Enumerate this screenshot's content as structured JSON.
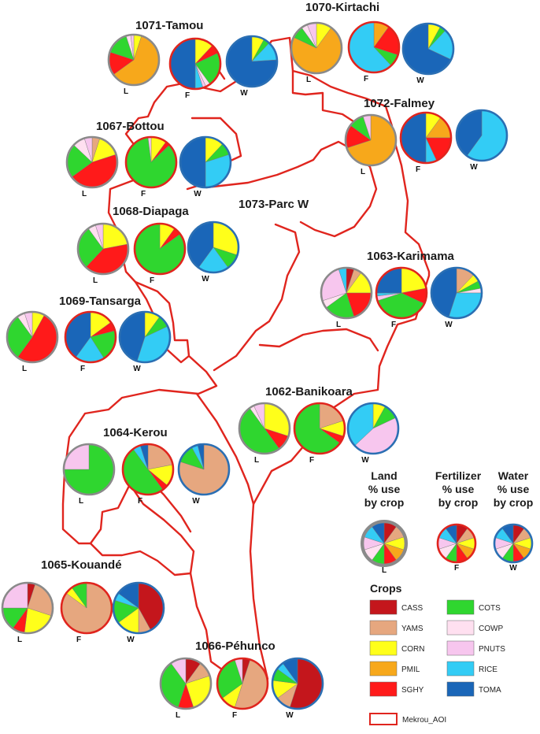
{
  "colors": {
    "boundary": "#e0251e",
    "CASS": "#c4161c",
    "YAMS": "#e6a77f",
    "CORN": "#ffff1a",
    "PMIL": "#f7a81b",
    "SGHY": "#ff1a1a",
    "COTS": "#2fd62f",
    "COWP": "#ffe0f0",
    "PNUTS": "#f7c6ee",
    "RICE": "#33ccf5",
    "TOMA": "#1a66b8"
  },
  "legend": {
    "land_header": [
      "Land",
      "% use",
      "by crop"
    ],
    "fert_header": [
      "Fertilizer",
      "% use",
      "by crop"
    ],
    "water_header": [
      "Water",
      "% use",
      "by crop"
    ],
    "land_letter": "L",
    "fert_letter": "F",
    "water_letter": "W",
    "crops_title": "Crops",
    "crops": [
      "CASS",
      "YAMS",
      "CORN",
      "PMIL",
      "SGHY",
      "COTS",
      "COWP",
      "PNUTS",
      "RICE",
      "TOMA"
    ],
    "boundary_label": "Mekrou_AOI"
  },
  "regions": [
    {
      "id": "1071",
      "name": "1071-Tamou",
      "pies": [
        {
          "letter": "L",
          "values": [
            0,
            0,
            5,
            60,
            15,
            15,
            3,
            2,
            0,
            0
          ]
        },
        {
          "letter": "F",
          "values": [
            0,
            0,
            12,
            0,
            6,
            22,
            3,
            2,
            5,
            50
          ]
        },
        {
          "letter": "W",
          "values": [
            0,
            0,
            8,
            0,
            0,
            4,
            0,
            0,
            12,
            76
          ]
        }
      ]
    },
    {
      "id": "1070",
      "name": "1070-Kirtachi",
      "pies": [
        {
          "letter": "L",
          "values": [
            0,
            0,
            10,
            72,
            0,
            8,
            4,
            6,
            0,
            0
          ]
        },
        {
          "letter": "F",
          "values": [
            0,
            0,
            0,
            10,
            20,
            8,
            0,
            0,
            62,
            0
          ]
        },
        {
          "letter": "W",
          "values": [
            0,
            0,
            8,
            0,
            0,
            4,
            0,
            0,
            20,
            68
          ]
        }
      ]
    },
    {
      "id": "1072",
      "name": "1072-Falmey",
      "pies": [
        {
          "letter": "L",
          "values": [
            0,
            0,
            0,
            70,
            15,
            10,
            0,
            5,
            0,
            0
          ]
        },
        {
          "letter": "F",
          "values": [
            0,
            0,
            10,
            15,
            18,
            0,
            0,
            0,
            7,
            50
          ]
        },
        {
          "letter": "W",
          "values": [
            0,
            0,
            0,
            0,
            0,
            0,
            0,
            0,
            60,
            40
          ]
        }
      ]
    },
    {
      "id": "1067",
      "name": "1067-Bottou",
      "pies": [
        {
          "letter": "L",
          "values": [
            0,
            5,
            15,
            0,
            45,
            22,
            8,
            5,
            0,
            0
          ]
        },
        {
          "letter": "F",
          "values": [
            0,
            0,
            10,
            0,
            3,
            85,
            0,
            2,
            0,
            0
          ]
        },
        {
          "letter": "W",
          "values": [
            0,
            0,
            12,
            0,
            0,
            8,
            0,
            0,
            30,
            50
          ]
        }
      ]
    },
    {
      "id": "1068",
      "name": "1068-Diapaga",
      "pies": [
        {
          "letter": "L",
          "values": [
            0,
            0,
            22,
            0,
            40,
            28,
            5,
            5,
            0,
            0
          ]
        },
        {
          "letter": "F",
          "values": [
            0,
            0,
            10,
            0,
            5,
            85,
            0,
            0,
            0,
            0
          ]
        },
        {
          "letter": "W",
          "values": [
            0,
            0,
            30,
            0,
            0,
            10,
            0,
            0,
            20,
            40
          ]
        }
      ]
    },
    {
      "id": "1063",
      "name": "1063-Karimama",
      "pies": [
        {
          "letter": "L",
          "values": [
            5,
            5,
            15,
            0,
            20,
            20,
            5,
            25,
            5,
            0
          ]
        },
        {
          "letter": "F",
          "values": [
            0,
            0,
            22,
            0,
            10,
            38,
            0,
            3,
            2,
            25
          ]
        },
        {
          "letter": "W",
          "values": [
            0,
            12,
            5,
            0,
            0,
            5,
            3,
            0,
            30,
            45
          ]
        }
      ]
    },
    {
      "id": "1069",
      "name": "1069-Tansarga",
      "pies": [
        {
          "letter": "L",
          "values": [
            0,
            0,
            8,
            0,
            52,
            30,
            5,
            5,
            0,
            0
          ]
        },
        {
          "letter": "F",
          "values": [
            0,
            0,
            15,
            0,
            6,
            20,
            0,
            0,
            19,
            40
          ]
        },
        {
          "letter": "W",
          "values": [
            0,
            0,
            10,
            0,
            0,
            8,
            0,
            0,
            37,
            45
          ]
        }
      ]
    },
    {
      "id": "1062",
      "name": "1062-Banikoara",
      "pies": [
        {
          "letter": "L",
          "values": [
            0,
            0,
            30,
            0,
            10,
            50,
            3,
            7,
            0,
            0
          ]
        },
        {
          "letter": "F",
          "values": [
            0,
            20,
            10,
            0,
            5,
            65,
            0,
            0,
            0,
            0
          ]
        },
        {
          "letter": "W",
          "values": [
            0,
            0,
            8,
            0,
            0,
            10,
            0,
            45,
            37,
            0
          ]
        }
      ]
    },
    {
      "id": "1064",
      "name": "1064-Kerou",
      "pies": [
        {
          "letter": "L",
          "values": [
            0,
            0,
            0,
            0,
            0,
            75,
            0,
            25,
            0,
            0
          ]
        },
        {
          "letter": "F",
          "values": [
            0,
            22,
            14,
            0,
            4,
            50,
            0,
            0,
            5,
            5
          ]
        },
        {
          "letter": "W",
          "values": [
            0,
            80,
            0,
            0,
            0,
            12,
            0,
            0,
            4,
            4
          ]
        }
      ]
    },
    {
      "id": "1065",
      "name": "1065-Kouandé",
      "pies": [
        {
          "letter": "L",
          "values": [
            5,
            25,
            22,
            0,
            8,
            15,
            0,
            25,
            0,
            0
          ]
        },
        {
          "letter": "F",
          "values": [
            0,
            85,
            5,
            0,
            0,
            10,
            0,
            0,
            0,
            0
          ]
        },
        {
          "letter": "W",
          "values": [
            42,
            8,
            15,
            0,
            0,
            15,
            0,
            0,
            5,
            15
          ]
        }
      ]
    },
    {
      "id": "1066",
      "name": "1066-Péhunco",
      "pies": [
        {
          "letter": "L",
          "values": [
            10,
            10,
            25,
            0,
            10,
            35,
            0,
            10,
            0,
            0
          ]
        },
        {
          "letter": "F",
          "values": [
            5,
            50,
            10,
            0,
            0,
            30,
            0,
            5,
            0,
            0
          ]
        },
        {
          "letter": "W",
          "values": [
            55,
            10,
            12,
            0,
            0,
            8,
            0,
            0,
            5,
            10
          ]
        }
      ]
    },
    {
      "id": "1073",
      "name": "1073-Parc W",
      "pies": []
    }
  ]
}
